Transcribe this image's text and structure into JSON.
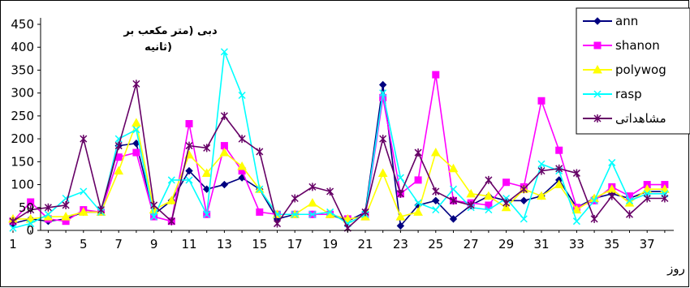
{
  "chart_data": {
    "type": "line",
    "title": [
      "دبی (متر مکعب بر",
      "ثانیه)"
    ],
    "xlabel": "روز",
    "ylabel": "",
    "ylim": [
      0,
      450
    ],
    "yticks": [
      0,
      50,
      100,
      150,
      200,
      250,
      300,
      350,
      400,
      450
    ],
    "x": [
      1,
      2,
      3,
      4,
      5,
      6,
      7,
      8,
      9,
      10,
      11,
      12,
      13,
      14,
      15,
      16,
      17,
      18,
      19,
      20,
      21,
      22,
      23,
      24,
      25,
      26,
      27,
      28,
      29,
      30,
      31,
      32,
      33,
      34,
      35,
      36,
      37,
      38
    ],
    "xtick_labels": [
      "1",
      "3",
      "5",
      "7",
      "9",
      "11",
      "13",
      "15",
      "17",
      "19",
      "21",
      "23",
      "25",
      "27",
      "29",
      "31",
      "33",
      "35",
      "37"
    ],
    "legend_position": "top-right",
    "series": [
      {
        "name": "ann",
        "color": "#000080",
        "marker": "diamond",
        "values": [
          15,
          25,
          20,
          25,
          40,
          40,
          185,
          190,
          35,
          65,
          130,
          90,
          100,
          115,
          90,
          25,
          35,
          35,
          35,
          20,
          40,
          318,
          10,
          55,
          65,
          25,
          55,
          75,
          65,
          65,
          75,
          110,
          50,
          70,
          80,
          70,
          85,
          85
        ]
      },
      {
        "name": "shanon",
        "color": "#ff00ff",
        "marker": "square",
        "values": [
          20,
          62,
          25,
          20,
          45,
          40,
          160,
          170,
          30,
          20,
          233,
          35,
          185,
          130,
          40,
          35,
          35,
          35,
          35,
          25,
          30,
          290,
          80,
          110,
          340,
          65,
          60,
          55,
          105,
          95,
          283,
          175,
          50,
          65,
          95,
          75,
          100,
          100
        ]
      },
      {
        "name": "polywog",
        "color": "#ffff00",
        "marker": "triangle",
        "values": [
          25,
          25,
          30,
          30,
          40,
          40,
          130,
          235,
          45,
          65,
          165,
          125,
          170,
          140,
          90,
          35,
          35,
          60,
          35,
          25,
          30,
          125,
          30,
          40,
          170,
          135,
          80,
          75,
          50,
          90,
          75,
          100,
          45,
          70,
          90,
          60,
          90,
          90
        ]
      },
      {
        "name": "rasp",
        "color": "#00ffff",
        "marker": "x",
        "values": [
          5,
          15,
          35,
          70,
          85,
          40,
          200,
          220,
          30,
          110,
          110,
          35,
          390,
          295,
          90,
          35,
          35,
          35,
          40,
          15,
          35,
          300,
          115,
          60,
          45,
          90,
          50,
          45,
          70,
          25,
          145,
          130,
          20,
          65,
          148,
          65,
          80,
          80
        ]
      },
      {
        "name": "مشاهداتی",
        "color": "#660066",
        "marker": "star",
        "values": [
          20,
          45,
          50,
          55,
          200,
          45,
          185,
          320,
          55,
          20,
          185,
          180,
          250,
          200,
          172,
          15,
          70,
          95,
          85,
          5,
          40,
          200,
          80,
          170,
          85,
          65,
          55,
          110,
          60,
          90,
          130,
          135,
          125,
          25,
          75,
          35,
          70,
          70
        ]
      }
    ]
  }
}
